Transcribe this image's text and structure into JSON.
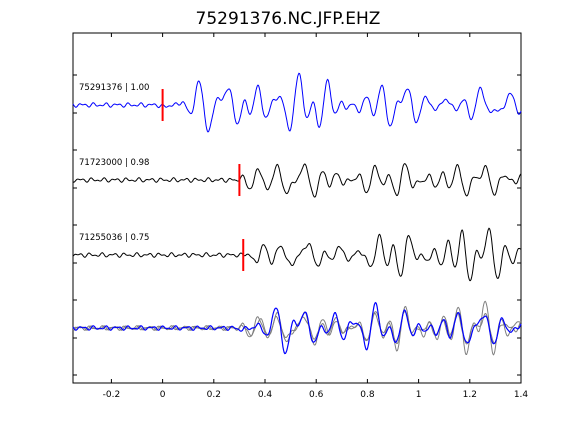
{
  "chart_data": {
    "type": "line",
    "title": "75291376.NC.JFP.EHZ",
    "xlabel": "",
    "ylabel": "",
    "xlim": [
      -0.35,
      1.4
    ],
    "xticks": [
      "-0.2",
      "0",
      "0.2",
      "0.4",
      "0.6",
      "0.8",
      "1",
      "1.2",
      "1.4"
    ],
    "grid": false,
    "colors": {
      "reference": "#0000ff",
      "match": "#000000",
      "overlay": "#7f7f7f",
      "pick": "#ff0000"
    },
    "traces": [
      {
        "label": "75291376 | 1.00",
        "color": "#0000ff",
        "pick_time": 0.0,
        "seed": 1
      },
      {
        "label": "71723000 | 0.98",
        "color": "#000000",
        "pick_time": 0.3,
        "seed": 2
      },
      {
        "label": "71255036 | 0.75",
        "color": "#000000",
        "pick_time": 0.315,
        "seed": 3
      }
    ],
    "stack": {
      "overlay_colors": [
        "#7f7f7f",
        "#7f7f7f",
        "#0000ff"
      ]
    }
  }
}
